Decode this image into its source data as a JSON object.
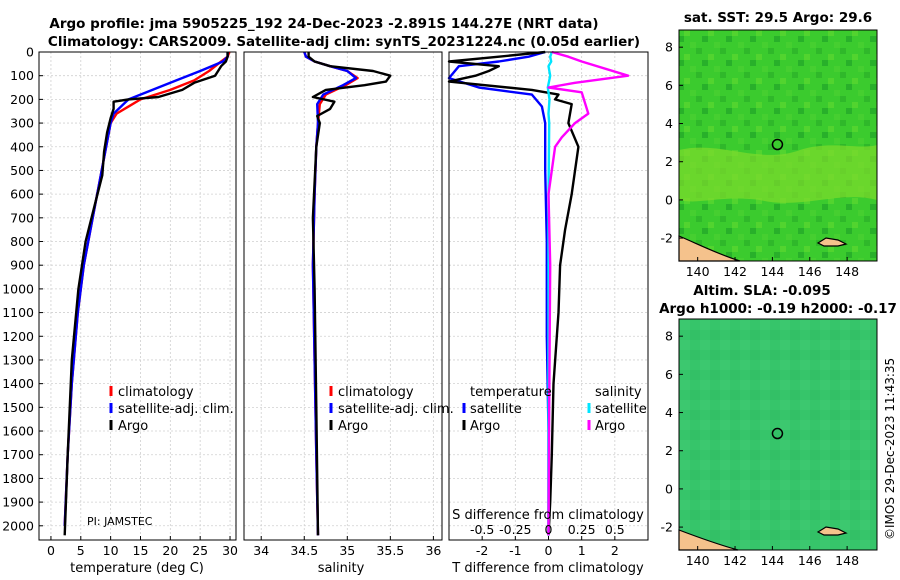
{
  "header": {
    "line1": "Argo profile: jma 5905225_192 24-Dec-2023 -2.891S 144.27E (NRT data)",
    "line2": "Climatology: CARS2009. Satellite-adj clim: synTS_20231224.nc (0.05d earlier)"
  },
  "colors": {
    "climatology": "#ff0000",
    "satellite_adj": "#0000ff",
    "argo": "#000000",
    "salinity_sat": "#00e5ff",
    "salinity_diff": "#ff00ff",
    "land": "#f5c28c",
    "sst_field": "#33cc33",
    "sla_field": "#2fc46a"
  },
  "chart_data": [
    {
      "type": "line",
      "name": "temperature",
      "xlabel": "temperature (deg C)",
      "xlim": [
        -2,
        31
      ],
      "xticks": [
        0,
        5,
        10,
        15,
        20,
        25,
        30
      ],
      "ylabel": "",
      "ylim": [
        0,
        2060
      ],
      "ydir": "reverse",
      "yticks": [
        0,
        100,
        200,
        300,
        400,
        500,
        600,
        700,
        800,
        900,
        1000,
        1100,
        1200,
        1300,
        1400,
        1500,
        1600,
        1700,
        1800,
        1900,
        2000
      ],
      "legend": [
        "climatology",
        "satellite-adj. clim.",
        "Argo"
      ],
      "annotation": "PI: JAMSTEC",
      "series": [
        {
          "name": "climatology",
          "color": "#ff0000",
          "x": [
            29.9,
            29.6,
            28.5,
            26.5,
            24,
            20,
            15,
            11,
            10,
            8.5,
            7,
            5.5,
            4.5,
            3.5,
            2.8,
            2.3
          ],
          "y": [
            0,
            20,
            40,
            80,
            120,
            160,
            200,
            260,
            300,
            500,
            700,
            900,
            1100,
            1400,
            1700,
            2000
          ]
        },
        {
          "name": "satellite-adj. clim.",
          "color": "#0000ff",
          "x": [
            29.6,
            29.6,
            28.8,
            25,
            21,
            17,
            13,
            10.5,
            10,
            8.5,
            7,
            5.5,
            4.5,
            3.5,
            2.8,
            2.3
          ],
          "y": [
            0,
            20,
            40,
            80,
            120,
            160,
            200,
            260,
            300,
            500,
            700,
            900,
            1100,
            1400,
            1700,
            2000
          ]
        },
        {
          "name": "Argo",
          "color": "#000000",
          "x": [
            29.6,
            29.6,
            29.3,
            28.5,
            28,
            27.5,
            24,
            22,
            18,
            13,
            10.5,
            10.5,
            10,
            9.4,
            8.9,
            8.6,
            7.4,
            5.8,
            4.6,
            3.5,
            2.8,
            2.3
          ],
          "y": [
            0,
            20,
            40,
            60,
            80,
            100,
            130,
            160,
            190,
            200,
            210,
            240,
            280,
            340,
            420,
            520,
            640,
            800,
            1000,
            1300,
            1700,
            2040
          ]
        }
      ]
    },
    {
      "type": "line",
      "name": "salinity",
      "xlabel": "salinity",
      "xlim": [
        33.8,
        36.1
      ],
      "xticks": [
        34,
        34.5,
        35,
        35.5,
        36
      ],
      "ylim": [
        0,
        2060
      ],
      "ydir": "reverse",
      "legend": [
        "climatology",
        "satellite-adj. clim.",
        "Argo"
      ],
      "series": [
        {
          "name": "climatology",
          "color": "#ff0000",
          "x": [
            34.5,
            34.52,
            34.62,
            34.8,
            35.0,
            35.12,
            34.98,
            34.75,
            34.68,
            34.66,
            34.64,
            34.62,
            34.6,
            34.62,
            34.64,
            34.66
          ],
          "y": [
            0,
            20,
            40,
            60,
            80,
            110,
            140,
            180,
            220,
            300,
            400,
            600,
            900,
            1300,
            1700,
            2040
          ]
        },
        {
          "name": "satellite-adj. clim.",
          "color": "#0000ff",
          "x": [
            34.5,
            34.52,
            34.62,
            34.8,
            35.0,
            35.1,
            34.95,
            34.72,
            34.65,
            34.66,
            34.64,
            34.62,
            34.6,
            34.62,
            34.64,
            34.66
          ],
          "y": [
            0,
            20,
            40,
            60,
            80,
            110,
            140,
            180,
            220,
            300,
            400,
            600,
            900,
            1300,
            1700,
            2040
          ]
        },
        {
          "name": "Argo",
          "color": "#000000",
          "x": [
            34.55,
            34.55,
            34.62,
            34.8,
            35.3,
            35.5,
            35.45,
            35.2,
            34.75,
            34.6,
            34.85,
            34.8,
            34.65,
            34.68,
            34.64,
            34.6,
            34.62,
            34.64,
            34.66
          ],
          "y": [
            0,
            20,
            40,
            60,
            80,
            100,
            125,
            140,
            160,
            190,
            210,
            240,
            270,
            300,
            400,
            700,
            1000,
            1500,
            2040
          ]
        }
      ]
    },
    {
      "type": "line",
      "name": "differences",
      "xlabel": "T difference from climatology",
      "xlim": [
        -3,
        3
      ],
      "xticks": [
        -2,
        -1,
        0,
        1,
        2
      ],
      "x2label": "S difference from climatology",
      "x2ticks": [
        -0.5,
        -0.25,
        0,
        0.25,
        0.5
      ],
      "ylim": [
        0,
        2060
      ],
      "ydir": "reverse",
      "legend_temperature": [
        "temperature",
        "satellite",
        "Argo"
      ],
      "legend_salinity": [
        "salinity",
        "satellite",
        "Argo"
      ],
      "series": [
        {
          "name": "T satellite",
          "color": "#0000ff",
          "x": [
            -0.1,
            -0.6,
            -1.5,
            -2.7,
            -3,
            -2.1,
            -0.5,
            -0.2,
            -0.1,
            -0.1,
            -0.05,
            -0.05,
            0,
            0
          ],
          "y": [
            0,
            20,
            40,
            60,
            110,
            150,
            180,
            230,
            300,
            500,
            800,
            1200,
            1600,
            2040
          ]
        },
        {
          "name": "T Argo",
          "color": "#000000",
          "x": [
            -0.1,
            -1.5,
            -3,
            -1.5,
            -1.8,
            -2.2,
            -3,
            -0.5,
            0.3,
            0.2,
            0.7,
            0.6,
            0.9,
            0.7,
            0.5,
            0.35,
            0.3,
            0.15,
            0.1,
            0.05,
            0
          ],
          "y": [
            0,
            20,
            40,
            60,
            80,
            100,
            125,
            160,
            180,
            200,
            220,
            300,
            400,
            600,
            750,
            900,
            1100,
            1400,
            1700,
            1900,
            2040
          ]
        },
        {
          "name": "S satellite",
          "color": "#00e5ff",
          "x": [
            0.1,
            0.05,
            0.08,
            0,
            0.05,
            -0.02,
            0.03,
            0,
            0.02,
            0,
            0,
            0
          ],
          "y": [
            0,
            20,
            40,
            60,
            100,
            150,
            200,
            260,
            300,
            600,
            1200,
            2040
          ]
        },
        {
          "name": "S Argo",
          "color": "#ff00ff",
          "x": [
            0.1,
            0.6,
            1.0,
            2.4,
            0.8,
            0.0,
            1.0,
            1.2,
            0.8,
            0.4,
            0.2,
            0.0,
            0.05,
            0.02,
            0
          ],
          "y": [
            0,
            20,
            40,
            100,
            130,
            150,
            170,
            260,
            300,
            360,
            400,
            600,
            900,
            1500,
            2040
          ]
        }
      ]
    }
  ],
  "maps": {
    "sst": {
      "title": "sat. SST: 29.5  Argo: 29.6",
      "xticks": [
        140,
        142,
        144,
        146,
        148
      ],
      "yticks": [
        8,
        6,
        4,
        2,
        0,
        -2
      ],
      "xlim": [
        139.0,
        149.6
      ],
      "ylim": [
        -3.2,
        8.9
      ],
      "marker": {
        "lon": 144.27,
        "lat": 2.9
      }
    },
    "sla": {
      "title": "Altim. SLA: -0.095",
      "subtitle": "Argo h1000: -0.19 h2000: -0.17",
      "xticks": [
        140,
        142,
        144,
        146,
        148
      ],
      "yticks": [
        8,
        6,
        4,
        2,
        0,
        -2
      ],
      "xlim": [
        139.0,
        149.6
      ],
      "ylim": [
        -3.2,
        8.9
      ],
      "marker": {
        "lon": 144.27,
        "lat": 2.9
      }
    }
  },
  "footer": {
    "timestamp": "©IMOS 29-Dec-2023 11:43:35"
  }
}
